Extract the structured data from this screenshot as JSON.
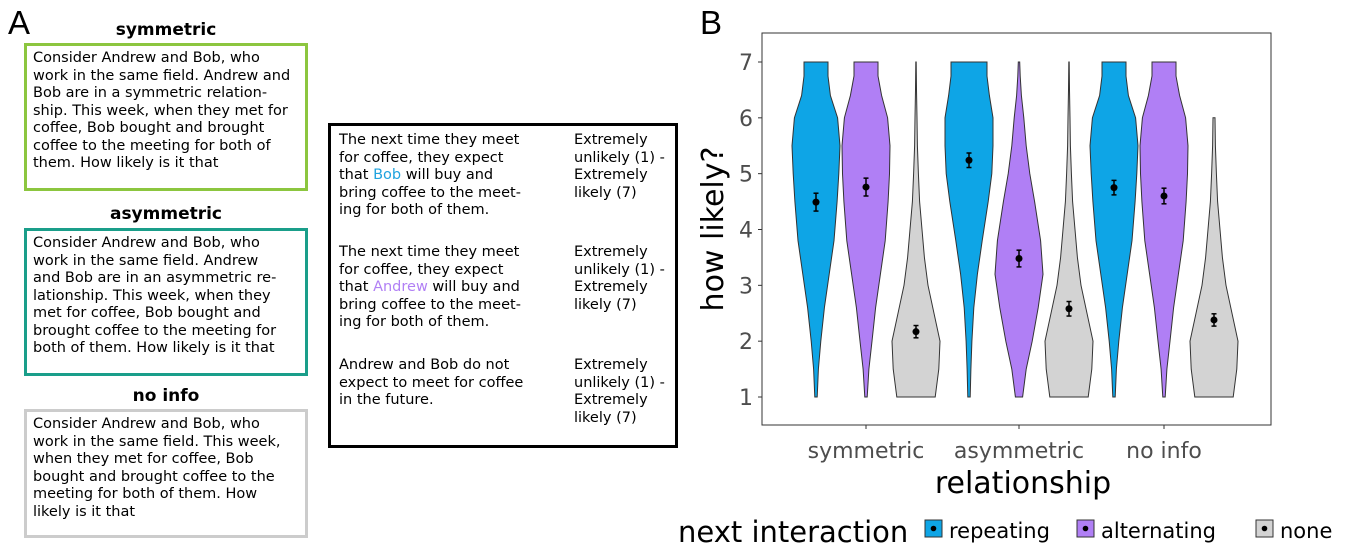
{
  "panel_a": {
    "letter": "A",
    "conditions": [
      {
        "title": "symmetric",
        "border_color": "#8cc63f",
        "lines": [
          "Consider Andrew and Bob, who",
          "work in the same field. Andrew and",
          "Bob are in a symmetric relation-",
          "ship. This week, when they met for",
          "coffee, Bob bought and brought",
          "coffee to the meeting for both of",
          "them. How likely is it that"
        ]
      },
      {
        "title": "asymmetric",
        "border_color": "#1a9e8a",
        "lines": [
          "Consider Andrew and Bob, who",
          "work in the same field. Andrew",
          "and Bob are in an asymmetric re-",
          "lationship. This week, when they",
          "met for coffee, Bob bought and",
          "brought coffee to the meeting for",
          "both of them. How likely is it that"
        ]
      },
      {
        "title": "no info",
        "border_color": "#cccccc",
        "lines": [
          "Consider Andrew and Bob, who",
          "work in the same field. This week,",
          "when they met for coffee, Bob",
          "bought and brought coffee to the",
          "meeting for both of them. How",
          "likely is it that"
        ]
      }
    ],
    "questions": [
      {
        "pre": [
          "The next time they meet",
          "for coffee, they expect",
          "that "
        ],
        "highlight": "Bob",
        "highlight_color": "#1fa3de",
        "post_first": " will buy and",
        "post": [
          "bring coffee to the meet-",
          "ing for both of them."
        ],
        "scale": [
          "Extremely",
          "unlikely (1) -",
          "Extremely",
          "likely (7)"
        ]
      },
      {
        "pre": [
          "The next time they meet",
          "for coffee, they expect",
          "that "
        ],
        "highlight": "Andrew",
        "highlight_color": "#b180f5",
        "post_first": " will buy and",
        "post": [
          "bring coffee to the meet-",
          "ing for both of them."
        ],
        "scale": [
          "Extremely",
          "unlikely (1) -",
          "Extremely",
          "likely (7)"
        ]
      },
      {
        "lines": [
          "Andrew and Bob do not",
          "expect to meet for coffee",
          "in the future."
        ],
        "scale": [
          "Extremely",
          "unlikely (1) -",
          "Extremely",
          "likely (7)"
        ]
      }
    ]
  },
  "panel_b": {
    "letter": "B"
  },
  "chart_data": {
    "type": "violin",
    "xlabel": "relationship",
    "ylabel": "how likely?",
    "ylim": [
      1,
      7
    ],
    "yticks": [
      "1",
      "2",
      "3",
      "4",
      "5",
      "6",
      "7"
    ],
    "categories": [
      "symmetric",
      "asymmetric",
      "no info"
    ],
    "legend_title": "next interaction",
    "legend_position": "bottom",
    "grid": false,
    "series": [
      {
        "name": "repeating",
        "color": "#0ea5e6",
        "means": [
          4.49,
          5.24,
          4.75
        ],
        "ci_low": [
          4.33,
          5.11,
          4.62
        ],
        "ci_high": [
          4.65,
          5.37,
          4.88
        ],
        "ranges": [
          [
            1,
            7
          ],
          [
            1,
            7
          ],
          [
            1,
            7
          ]
        ]
      },
      {
        "name": "alternating",
        "color": "#b07ff5",
        "means": [
          4.76,
          3.48,
          4.6
        ],
        "ci_low": [
          4.6,
          3.33,
          4.46
        ],
        "ci_high": [
          4.92,
          3.63,
          4.74
        ],
        "ranges": [
          [
            1,
            7
          ],
          [
            1,
            7
          ],
          [
            1,
            7
          ]
        ]
      },
      {
        "name": "none",
        "color": "#d3d3d3",
        "means": [
          2.17,
          2.58,
          2.38
        ],
        "ci_low": [
          2.06,
          2.45,
          2.27
        ],
        "ci_high": [
          2.28,
          2.71,
          2.49
        ],
        "ranges": [
          [
            1,
            7
          ],
          [
            1,
            7
          ],
          [
            1,
            6
          ]
        ]
      }
    ]
  }
}
